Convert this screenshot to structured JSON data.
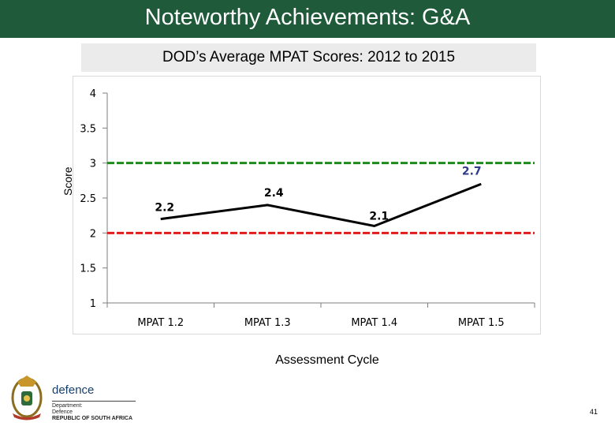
{
  "header": {
    "title": "Noteworthy Achievements: G&A"
  },
  "brand": {
    "name": "defence",
    "department_line1": "Department:",
    "department_line2": "Defence",
    "country": "REPUBLIC OF SOUTH AFRICA"
  },
  "page_number": "41",
  "colors": {
    "header_bg": "#1f5a3b",
    "subtitle_bg": "#ebebeb",
    "series_line": "#000000",
    "upper_threshold": "#1e8a1e",
    "lower_threshold": "#e01b1b",
    "last_label": "#2e3a8a"
  },
  "chart_data": {
    "type": "line",
    "title": "DOD’s Average MPAT Scores: 2012 to 2015",
    "xlabel": "Assessment Cycle",
    "ylabel": "Score",
    "categories": [
      "MPAT 1.2",
      "MPAT 1.3",
      "MPAT 1.4",
      "MPAT 1.5"
    ],
    "values": [
      2.2,
      2.4,
      2.1,
      2.7
    ],
    "data_labels": [
      "2.2",
      "2.4",
      "2.1",
      "2.7"
    ],
    "y_ticks": [
      "4",
      "3.5",
      "3",
      "2.5",
      "2",
      "1.5",
      "1"
    ],
    "ylim": [
      1,
      4
    ],
    "thresholds": [
      {
        "value": 3,
        "color": "#1e8a1e",
        "style": "dashed"
      },
      {
        "value": 2,
        "color": "#e01b1b",
        "style": "dashed"
      }
    ],
    "grid": false,
    "legend": "none"
  }
}
